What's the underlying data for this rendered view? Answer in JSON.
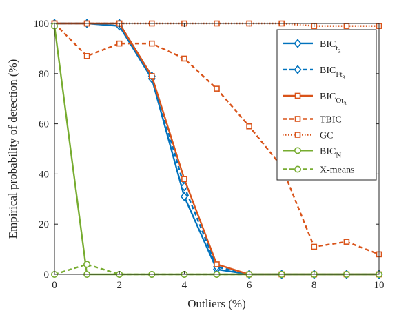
{
  "chart_data": {
    "type": "line",
    "xlabel": "Outliers (%)",
    "ylabel": "Empirical probability of detection (%)",
    "xlim": [
      0,
      10
    ],
    "ylim": [
      0,
      100
    ],
    "xticks": [
      0,
      2,
      4,
      6,
      8,
      10
    ],
    "yticks": [
      0,
      20,
      40,
      60,
      80,
      100
    ],
    "grid": false,
    "legend_position": "top-right",
    "x": [
      0,
      1,
      2,
      3,
      4,
      5,
      6,
      7,
      8,
      9,
      10
    ],
    "series": [
      {
        "name": "BIC",
        "sub": "t",
        "subsub": "3",
        "color": "#0072BD",
        "dash": "solid",
        "marker": "diamond",
        "values": [
          100,
          100,
          99,
          78,
          31,
          2,
          0,
          0,
          0,
          0,
          0
        ]
      },
      {
        "name": "BIC",
        "sub": "Ft",
        "subsub": "3",
        "color": "#0072BD",
        "dash": "dashed",
        "marker": "diamond",
        "values": [
          100,
          100,
          100,
          79,
          35,
          3,
          0,
          0,
          0,
          0,
          0
        ]
      },
      {
        "name": "BIC",
        "sub": "Ot",
        "subsub": "3",
        "color": "#D95319",
        "dash": "solid",
        "marker": "square",
        "values": [
          100,
          100,
          100,
          79,
          38,
          4,
          0,
          0,
          0,
          0,
          0
        ]
      },
      {
        "name": "TBIC",
        "color": "#D95319",
        "dash": "dashed",
        "marker": "square",
        "values": [
          100,
          87,
          92,
          92,
          86,
          74,
          59,
          43,
          11,
          13,
          8
        ]
      },
      {
        "name": "GC",
        "color": "#D95319",
        "dash": "dotted",
        "marker": "square",
        "values": [
          100,
          100,
          100,
          100,
          100,
          100,
          100,
          100,
          99,
          99,
          99
        ]
      },
      {
        "name": "BIC",
        "sub": "N",
        "color": "#77AC30",
        "dash": "solid",
        "marker": "circle",
        "values": [
          99,
          0,
          0,
          0,
          0,
          0,
          0,
          0,
          0,
          0,
          0
        ]
      },
      {
        "name": "X-means",
        "color": "#77AC30",
        "dash": "dashed",
        "marker": "circle",
        "values": [
          0,
          4,
          0,
          0,
          0,
          0,
          0,
          0,
          0,
          0,
          0
        ]
      }
    ]
  }
}
